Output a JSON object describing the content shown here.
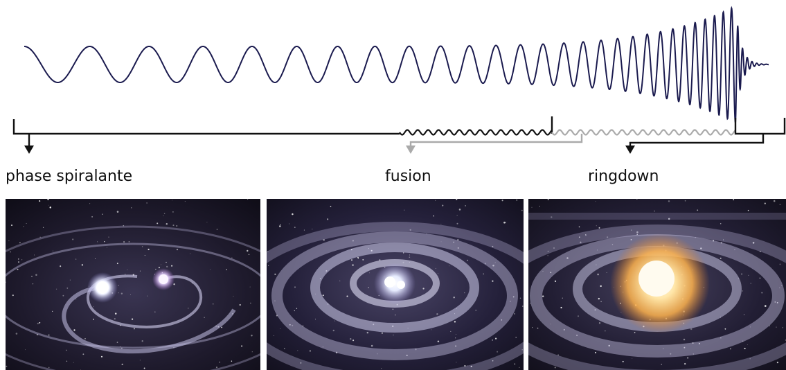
{
  "phases": [
    {
      "key": "inspiral",
      "label": "phase spiralante"
    },
    {
      "key": "merger",
      "label": "fusion"
    },
    {
      "key": "ringdown",
      "label": "ringdown"
    }
  ],
  "colors": {
    "waveform": "#1a1a4e",
    "bracket_dark": "#111111",
    "bracket_light": "#aaaaaa",
    "space_bg": "#1a1626",
    "ring": "#b7b3d8",
    "glow_white": "#f4f6ff",
    "glow_orange": "#ffb34d"
  },
  "icons": [
    "arrow-down-icon"
  ]
}
